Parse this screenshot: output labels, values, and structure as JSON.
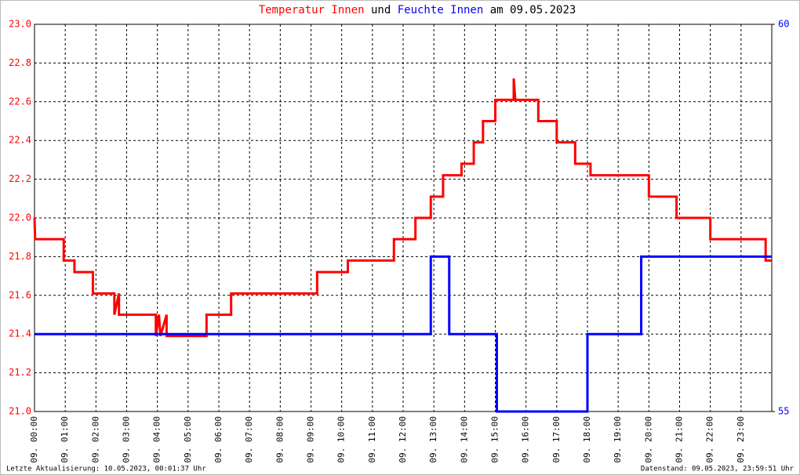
{
  "chart_data": {
    "type": "line",
    "title_words": [
      "und",
      "am 09.05.2023"
    ],
    "xlim": [
      0,
      24
    ],
    "xticks": [
      {
        "value": 0,
        "label": "09. 00:00"
      },
      {
        "value": 1,
        "label": "09. 01:00"
      },
      {
        "value": 2,
        "label": "09. 02:00"
      },
      {
        "value": 3,
        "label": "09. 03:00"
      },
      {
        "value": 4,
        "label": "09. 04:00"
      },
      {
        "value": 5,
        "label": "09. 05:00"
      },
      {
        "value": 6,
        "label": "09. 06:00"
      },
      {
        "value": 7,
        "label": "09. 07:00"
      },
      {
        "value": 8,
        "label": "09. 08:00"
      },
      {
        "value": 9,
        "label": "09. 09:00"
      },
      {
        "value": 10,
        "label": "09. 10:00"
      },
      {
        "value": 11,
        "label": "09. 11:00"
      },
      {
        "value": 12,
        "label": "09. 12:00"
      },
      {
        "value": 13,
        "label": "09. 13:00"
      },
      {
        "value": 14,
        "label": "09. 14:00"
      },
      {
        "value": 15,
        "label": "09. 15:00"
      },
      {
        "value": 16,
        "label": "09. 16:00"
      },
      {
        "value": 17,
        "label": "09. 17:00"
      },
      {
        "value": 18,
        "label": "09. 18:00"
      },
      {
        "value": 19,
        "label": "09. 19:00"
      },
      {
        "value": 20,
        "label": "09. 20:00"
      },
      {
        "value": 21,
        "label": "09. 21:00"
      },
      {
        "value": 22,
        "label": "09. 22:00"
      },
      {
        "value": 23,
        "label": "09. 23:00"
      }
    ],
    "ylim": [
      21,
      23
    ],
    "yticks": [
      {
        "value": 21,
        "label": "21.0"
      },
      21.2,
      21.4,
      21.6,
      21.8,
      {
        "value": 22,
        "label": "22.0"
      },
      22.2,
      22.4,
      22.6,
      22.8,
      {
        "value": 23,
        "label": "23.0"
      }
    ],
    "y2lim": [
      55,
      60
    ],
    "y2ticks": [
      55,
      60
    ],
    "grid": true,
    "series": [
      {
        "name": "Temperatur Innen",
        "color": "#ff0000",
        "x": [
          0,
          0.02,
          0.95,
          0.95,
          1.3,
          1.3,
          1.9,
          1.9,
          2.6,
          2.6,
          2.75,
          2.75,
          3.95,
          3.95,
          4.05,
          4.1,
          4.3,
          4.3,
          5.6,
          5.6,
          6.4,
          6.4,
          9.2,
          9.2,
          10.2,
          10.2,
          11.7,
          11.7,
          12.4,
          12.4,
          12.9,
          12.9,
          13.3,
          13.3,
          13.9,
          13.9,
          14.3,
          14.3,
          14.6,
          14.6,
          15.0,
          15.0,
          15.6,
          15.6,
          15.65,
          16.4,
          16.4,
          17.0,
          17.0,
          17.6,
          17.6,
          18.1,
          18.1,
          20.0,
          20.0,
          20.9,
          20.9,
          22.0,
          22.0,
          23.8,
          23.8,
          24
        ],
        "values": [
          22.0,
          21.89,
          21.89,
          21.78,
          21.78,
          21.72,
          21.72,
          21.61,
          21.61,
          21.5,
          21.61,
          21.5,
          21.5,
          21.39,
          21.5,
          21.39,
          21.5,
          21.39,
          21.39,
          21.5,
          21.5,
          21.61,
          21.61,
          21.72,
          21.72,
          21.78,
          21.78,
          21.89,
          21.89,
          22.0,
          22.0,
          22.11,
          22.11,
          22.22,
          22.22,
          22.28,
          22.28,
          22.39,
          22.39,
          22.5,
          22.5,
          22.61,
          22.61,
          22.72,
          22.61,
          22.61,
          22.5,
          22.5,
          22.39,
          22.39,
          22.28,
          22.28,
          22.22,
          22.22,
          22.11,
          22.11,
          22.0,
          22.0,
          21.89,
          21.89,
          21.78,
          21.78
        ]
      },
      {
        "name": "Feuchte Innen",
        "color": "#0000ff",
        "axis": "y2",
        "x": [
          0,
          12.9,
          12.9,
          13.5,
          13.5,
          15.05,
          15.05,
          18.0,
          18.0,
          19.75,
          19.75,
          24
        ],
        "values": [
          56,
          56,
          57,
          57,
          56,
          56,
          55,
          55,
          56,
          56,
          57,
          57
        ]
      }
    ],
    "footer_left": "Letzte Aktualisierung: 10.05.2023, 00:01:37 Uhr",
    "footer_right": "Datenstand: 09.05.2023, 23:59:51 Uhr"
  }
}
